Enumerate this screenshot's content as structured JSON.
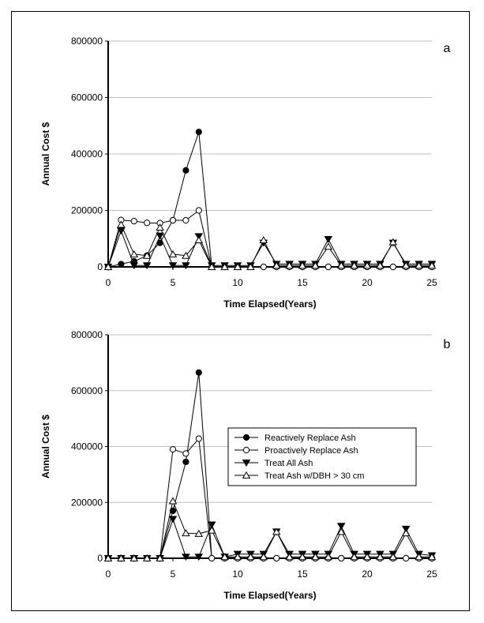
{
  "chart_data": [
    {
      "type": "line",
      "panel_label": "a",
      "xlabel": "Time Elapsed(Years)",
      "ylabel": "Annual Cost  $",
      "xlim": [
        0,
        25
      ],
      "ylim": [
        0,
        800000
      ],
      "x_ticks": [
        "0",
        "5",
        "10",
        "15",
        "20",
        "25"
      ],
      "y_ticks": [
        "0",
        "200000",
        "400000",
        "600000",
        "800000"
      ],
      "grid": "horizontal",
      "x": [
        0,
        1,
        2,
        3,
        4,
        5,
        6,
        7,
        8,
        9,
        10,
        11,
        12,
        13,
        14,
        15,
        16,
        17,
        18,
        19,
        20,
        21,
        22,
        23,
        24,
        25
      ],
      "series": [
        {
          "name": "Reactively Replace Ash",
          "marker": "filled-circle",
          "values": [
            0,
            10000,
            20000,
            40000,
            85000,
            165000,
            342000,
            478000,
            0,
            0,
            0,
            0,
            0,
            0,
            0,
            0,
            0,
            0,
            0,
            0,
            0,
            0,
            0,
            0,
            0,
            0
          ]
        },
        {
          "name": "Proactively Replace Ash",
          "marker": "open-circle",
          "values": [
            0,
            166000,
            162000,
            156000,
            155000,
            165000,
            165000,
            200000,
            0,
            0,
            0,
            0,
            0,
            0,
            0,
            0,
            0,
            0,
            0,
            0,
            0,
            0,
            0,
            0,
            0,
            0
          ]
        },
        {
          "name": "Treat All Ash",
          "marker": "filled-triangle-down",
          "values": [
            0,
            128000,
            5000,
            5000,
            110000,
            5000,
            5000,
            108000,
            5000,
            5000,
            5000,
            5000,
            85000,
            10000,
            10000,
            10000,
            10000,
            98000,
            10000,
            10000,
            10000,
            10000,
            85000,
            10000,
            10000,
            10000
          ]
        },
        {
          "name": "Treat Ash w/DBH > 30 cm",
          "marker": "open-triangle-up",
          "values": [
            0,
            150000,
            45000,
            40000,
            140000,
            45000,
            40000,
            95000,
            0,
            0,
            0,
            0,
            95000,
            5000,
            5000,
            5000,
            5000,
            72000,
            5000,
            5000,
            5000,
            5000,
            88000,
            5000,
            5000,
            5000
          ]
        }
      ]
    },
    {
      "type": "line",
      "panel_label": "b",
      "xlabel": "Time Elapsed(Years)",
      "ylabel": "Annual Cost  $",
      "xlim": [
        0,
        25
      ],
      "ylim": [
        0,
        800000
      ],
      "x_ticks": [
        "0",
        "5",
        "10",
        "15",
        "20",
        "25"
      ],
      "y_ticks": [
        "0",
        "200000",
        "400000",
        "600000",
        "800000"
      ],
      "grid": "horizontal",
      "legend_position": "center-right",
      "x": [
        0,
        1,
        2,
        3,
        4,
        5,
        6,
        7,
        8,
        9,
        10,
        11,
        12,
        13,
        14,
        15,
        16,
        17,
        18,
        19,
        20,
        21,
        22,
        23,
        24,
        25
      ],
      "series": [
        {
          "name": "Reactively Replace Ash",
          "marker": "filled-circle",
          "values": [
            0,
            0,
            0,
            0,
            0,
            170000,
            345000,
            665000,
            0,
            0,
            0,
            0,
            0,
            0,
            0,
            0,
            0,
            0,
            0,
            0,
            0,
            0,
            0,
            0,
            0,
            0
          ]
        },
        {
          "name": "Proactively Replace Ash",
          "marker": "open-circle",
          "values": [
            0,
            0,
            0,
            0,
            0,
            390000,
            375000,
            428000,
            0,
            0,
            0,
            0,
            0,
            0,
            0,
            0,
            0,
            0,
            0,
            0,
            0,
            0,
            0,
            0,
            0,
            0
          ]
        },
        {
          "name": "Treat All Ash",
          "marker": "filled-triangle-down",
          "values": [
            0,
            0,
            0,
            0,
            0,
            140000,
            5000,
            5000,
            120000,
            5000,
            15000,
            15000,
            15000,
            95000,
            15000,
            15000,
            15000,
            15000,
            115000,
            15000,
            15000,
            15000,
            15000,
            105000,
            15000,
            10000
          ]
        },
        {
          "name": "Treat Ash w/DBH > 30 cm",
          "marker": "open-triangle-up",
          "values": [
            0,
            0,
            0,
            0,
            0,
            205000,
            90000,
            88000,
            100000,
            5000,
            5000,
            5000,
            5000,
            95000,
            5000,
            5000,
            5000,
            5000,
            95000,
            5000,
            5000,
            5000,
            5000,
            90000,
            5000,
            5000
          ]
        }
      ]
    }
  ]
}
